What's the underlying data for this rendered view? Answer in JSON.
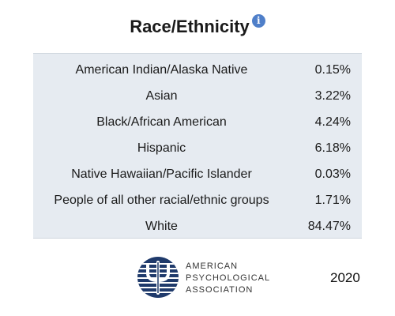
{
  "header": {
    "title": "Race/Ethnicity",
    "info_icon": "info-icon",
    "info_glyph": "i"
  },
  "table": {
    "rows": [
      {
        "label": "American Indian/Alaska Native",
        "value": "0.15%"
      },
      {
        "label": "Asian",
        "value": "3.22%"
      },
      {
        "label": "Black/African American",
        "value": "4.24%"
      },
      {
        "label": "Hispanic",
        "value": "6.18%"
      },
      {
        "label": "Native Hawaiian/Pacific Islander",
        "value": "0.03%"
      },
      {
        "label": "People of all other racial/ethnic groups",
        "value": "1.71%"
      },
      {
        "label": "White",
        "value": "84.47%"
      }
    ]
  },
  "footer": {
    "logo_lines": [
      "American",
      "Psychological",
      "Association"
    ],
    "year": "2020"
  },
  "colors": {
    "table_background": "#e6ebf1",
    "info_icon": "#4f7fc9",
    "logo_navy": "#1f3a6b"
  }
}
